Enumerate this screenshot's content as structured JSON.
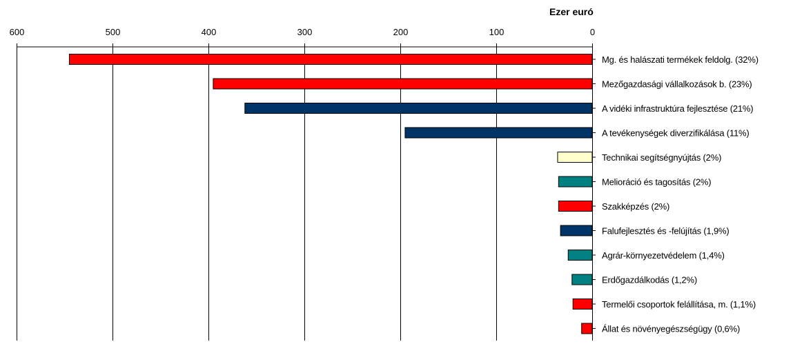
{
  "chart_data": {
    "type": "bar",
    "orientation": "horizontal",
    "x_axis_position": "top",
    "x_axis_reversed": true,
    "unit_label": "Ezer euró",
    "xlim": [
      0,
      600
    ],
    "ticks": [
      600,
      500,
      400,
      300,
      200,
      100,
      0
    ],
    "grid": "vertical",
    "categories": [
      "Mg. és halászati termékek feldolg. (32%)",
      "Mezőgazdasági vállalkozások b. (23%)",
      "A vidéki infrastruktúra fejlesztése (21%)",
      "A tevékenységek diverzifikálása (11%)",
      "Technikai segítségnyújtás (2%)",
      "Melioráció és tagosítás (2%)",
      "Szakképzés (2%)",
      "Falufejlesztés és -felújítás (1,9%)",
      "Agrár-környezetvédelem (1,4%)",
      "Erdőgazdálkodás (1,2%)",
      "Termelői csoportok felállítása, m. (1,1%)",
      "Állat és növényegészségügy (0,6%)"
    ],
    "values": [
      545,
      395,
      362,
      195,
      36,
      35,
      35,
      33,
      25,
      21,
      20,
      11
    ],
    "colors": [
      "#ff0000",
      "#ff0000",
      "#003366",
      "#003366",
      "#ffffcc",
      "#008080",
      "#ff0000",
      "#003366",
      "#008080",
      "#008080",
      "#ff0000",
      "#ff0000"
    ]
  }
}
